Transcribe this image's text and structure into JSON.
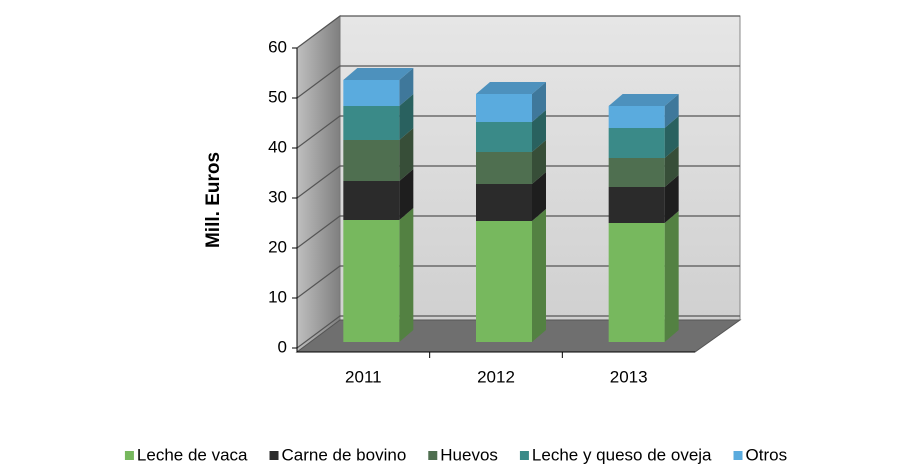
{
  "chart_data": {
    "type": "bar3d_stacked",
    "y_label": "Mill. Euros",
    "categories": [
      "2011",
      "2012",
      "2013"
    ],
    "series": [
      {
        "name": "Leche de vaca",
        "color": "#77b85e",
        "values": [
          24.4,
          24.2,
          23.8
        ]
      },
      {
        "name": "Carne de bovino",
        "color": "#2b2b2b",
        "values": [
          7.8,
          7.4,
          7.2
        ]
      },
      {
        "name": "Huevos",
        "color": "#4f6f50",
        "values": [
          8.2,
          6.4,
          5.8
        ]
      },
      {
        "name": "Leche y queso de oveja",
        "color": "#3a8a88",
        "values": [
          6.8,
          6,
          6
        ]
      },
      {
        "name": "Otros",
        "color": "#5aabde",
        "values": [
          5.2,
          5.6,
          4.4
        ]
      }
    ],
    "ylim": [
      0,
      60
    ],
    "yticks": [
      0,
      10,
      20,
      30,
      40,
      50,
      60
    ],
    "grid": true,
    "legend": "bottom"
  }
}
